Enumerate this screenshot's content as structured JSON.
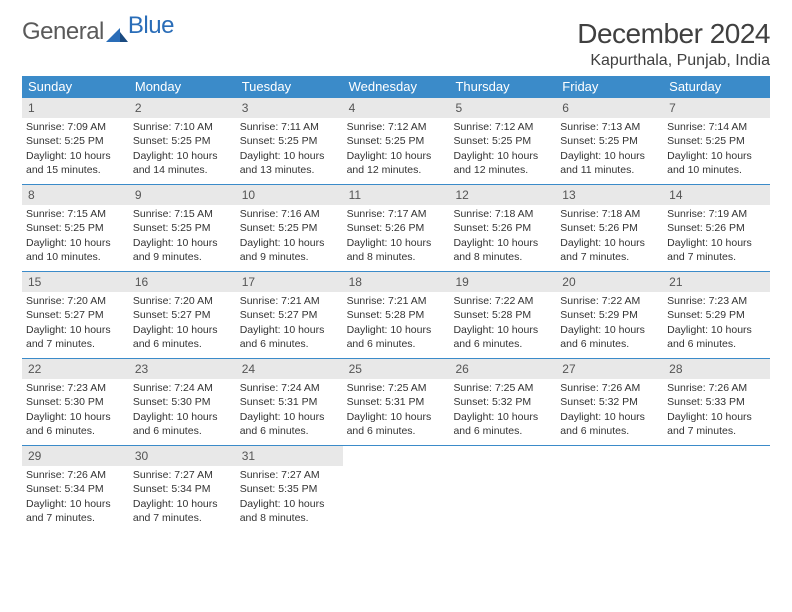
{
  "logo": {
    "text1": "General",
    "text2": "Blue"
  },
  "title": "December 2024",
  "location": "Kapurthala, Punjab, India",
  "colors": {
    "header_bg": "#3b8bc9",
    "header_text": "#ffffff",
    "row_border": "#3b8bc9",
    "daynum_bg": "#e8e8e8",
    "body_text": "#333333",
    "logo_gray": "#5a5a5a",
    "logo_blue": "#2a6db8"
  },
  "day_names": [
    "Sunday",
    "Monday",
    "Tuesday",
    "Wednesday",
    "Thursday",
    "Friday",
    "Saturday"
  ],
  "weeks": [
    [
      {
        "num": "1",
        "sunrise": "Sunrise: 7:09 AM",
        "sunset": "Sunset: 5:25 PM",
        "daylight1": "Daylight: 10 hours",
        "daylight2": "and 15 minutes."
      },
      {
        "num": "2",
        "sunrise": "Sunrise: 7:10 AM",
        "sunset": "Sunset: 5:25 PM",
        "daylight1": "Daylight: 10 hours",
        "daylight2": "and 14 minutes."
      },
      {
        "num": "3",
        "sunrise": "Sunrise: 7:11 AM",
        "sunset": "Sunset: 5:25 PM",
        "daylight1": "Daylight: 10 hours",
        "daylight2": "and 13 minutes."
      },
      {
        "num": "4",
        "sunrise": "Sunrise: 7:12 AM",
        "sunset": "Sunset: 5:25 PM",
        "daylight1": "Daylight: 10 hours",
        "daylight2": "and 12 minutes."
      },
      {
        "num": "5",
        "sunrise": "Sunrise: 7:12 AM",
        "sunset": "Sunset: 5:25 PM",
        "daylight1": "Daylight: 10 hours",
        "daylight2": "and 12 minutes."
      },
      {
        "num": "6",
        "sunrise": "Sunrise: 7:13 AM",
        "sunset": "Sunset: 5:25 PM",
        "daylight1": "Daylight: 10 hours",
        "daylight2": "and 11 minutes."
      },
      {
        "num": "7",
        "sunrise": "Sunrise: 7:14 AM",
        "sunset": "Sunset: 5:25 PM",
        "daylight1": "Daylight: 10 hours",
        "daylight2": "and 10 minutes."
      }
    ],
    [
      {
        "num": "8",
        "sunrise": "Sunrise: 7:15 AM",
        "sunset": "Sunset: 5:25 PM",
        "daylight1": "Daylight: 10 hours",
        "daylight2": "and 10 minutes."
      },
      {
        "num": "9",
        "sunrise": "Sunrise: 7:15 AM",
        "sunset": "Sunset: 5:25 PM",
        "daylight1": "Daylight: 10 hours",
        "daylight2": "and 9 minutes."
      },
      {
        "num": "10",
        "sunrise": "Sunrise: 7:16 AM",
        "sunset": "Sunset: 5:25 PM",
        "daylight1": "Daylight: 10 hours",
        "daylight2": "and 9 minutes."
      },
      {
        "num": "11",
        "sunrise": "Sunrise: 7:17 AM",
        "sunset": "Sunset: 5:26 PM",
        "daylight1": "Daylight: 10 hours",
        "daylight2": "and 8 minutes."
      },
      {
        "num": "12",
        "sunrise": "Sunrise: 7:18 AM",
        "sunset": "Sunset: 5:26 PM",
        "daylight1": "Daylight: 10 hours",
        "daylight2": "and 8 minutes."
      },
      {
        "num": "13",
        "sunrise": "Sunrise: 7:18 AM",
        "sunset": "Sunset: 5:26 PM",
        "daylight1": "Daylight: 10 hours",
        "daylight2": "and 7 minutes."
      },
      {
        "num": "14",
        "sunrise": "Sunrise: 7:19 AM",
        "sunset": "Sunset: 5:26 PM",
        "daylight1": "Daylight: 10 hours",
        "daylight2": "and 7 minutes."
      }
    ],
    [
      {
        "num": "15",
        "sunrise": "Sunrise: 7:20 AM",
        "sunset": "Sunset: 5:27 PM",
        "daylight1": "Daylight: 10 hours",
        "daylight2": "and 7 minutes."
      },
      {
        "num": "16",
        "sunrise": "Sunrise: 7:20 AM",
        "sunset": "Sunset: 5:27 PM",
        "daylight1": "Daylight: 10 hours",
        "daylight2": "and 6 minutes."
      },
      {
        "num": "17",
        "sunrise": "Sunrise: 7:21 AM",
        "sunset": "Sunset: 5:27 PM",
        "daylight1": "Daylight: 10 hours",
        "daylight2": "and 6 minutes."
      },
      {
        "num": "18",
        "sunrise": "Sunrise: 7:21 AM",
        "sunset": "Sunset: 5:28 PM",
        "daylight1": "Daylight: 10 hours",
        "daylight2": "and 6 minutes."
      },
      {
        "num": "19",
        "sunrise": "Sunrise: 7:22 AM",
        "sunset": "Sunset: 5:28 PM",
        "daylight1": "Daylight: 10 hours",
        "daylight2": "and 6 minutes."
      },
      {
        "num": "20",
        "sunrise": "Sunrise: 7:22 AM",
        "sunset": "Sunset: 5:29 PM",
        "daylight1": "Daylight: 10 hours",
        "daylight2": "and 6 minutes."
      },
      {
        "num": "21",
        "sunrise": "Sunrise: 7:23 AM",
        "sunset": "Sunset: 5:29 PM",
        "daylight1": "Daylight: 10 hours",
        "daylight2": "and 6 minutes."
      }
    ],
    [
      {
        "num": "22",
        "sunrise": "Sunrise: 7:23 AM",
        "sunset": "Sunset: 5:30 PM",
        "daylight1": "Daylight: 10 hours",
        "daylight2": "and 6 minutes."
      },
      {
        "num": "23",
        "sunrise": "Sunrise: 7:24 AM",
        "sunset": "Sunset: 5:30 PM",
        "daylight1": "Daylight: 10 hours",
        "daylight2": "and 6 minutes."
      },
      {
        "num": "24",
        "sunrise": "Sunrise: 7:24 AM",
        "sunset": "Sunset: 5:31 PM",
        "daylight1": "Daylight: 10 hours",
        "daylight2": "and 6 minutes."
      },
      {
        "num": "25",
        "sunrise": "Sunrise: 7:25 AM",
        "sunset": "Sunset: 5:31 PM",
        "daylight1": "Daylight: 10 hours",
        "daylight2": "and 6 minutes."
      },
      {
        "num": "26",
        "sunrise": "Sunrise: 7:25 AM",
        "sunset": "Sunset: 5:32 PM",
        "daylight1": "Daylight: 10 hours",
        "daylight2": "and 6 minutes."
      },
      {
        "num": "27",
        "sunrise": "Sunrise: 7:26 AM",
        "sunset": "Sunset: 5:32 PM",
        "daylight1": "Daylight: 10 hours",
        "daylight2": "and 6 minutes."
      },
      {
        "num": "28",
        "sunrise": "Sunrise: 7:26 AM",
        "sunset": "Sunset: 5:33 PM",
        "daylight1": "Daylight: 10 hours",
        "daylight2": "and 7 minutes."
      }
    ],
    [
      {
        "num": "29",
        "sunrise": "Sunrise: 7:26 AM",
        "sunset": "Sunset: 5:34 PM",
        "daylight1": "Daylight: 10 hours",
        "daylight2": "and 7 minutes."
      },
      {
        "num": "30",
        "sunrise": "Sunrise: 7:27 AM",
        "sunset": "Sunset: 5:34 PM",
        "daylight1": "Daylight: 10 hours",
        "daylight2": "and 7 minutes."
      },
      {
        "num": "31",
        "sunrise": "Sunrise: 7:27 AM",
        "sunset": "Sunset: 5:35 PM",
        "daylight1": "Daylight: 10 hours",
        "daylight2": "and 8 minutes."
      },
      {
        "empty": true
      },
      {
        "empty": true
      },
      {
        "empty": true
      },
      {
        "empty": true
      }
    ]
  ]
}
